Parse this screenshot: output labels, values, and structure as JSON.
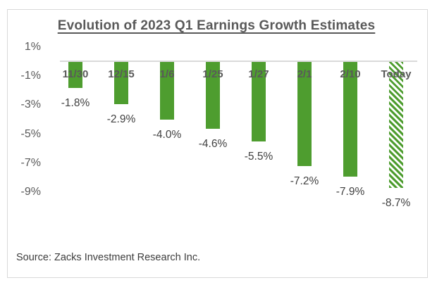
{
  "chart_data": {
    "type": "bar",
    "title": "Evolution of 2023 Q1 Earnings Growth Estimates",
    "categories": [
      "11/30",
      "12/15",
      "1/6",
      "1/25",
      "1/27",
      "2/1",
      "2/10",
      "Today"
    ],
    "values": [
      -1.8,
      -2.9,
      -4.0,
      -4.6,
      -5.5,
      -7.2,
      -7.9,
      -8.7
    ],
    "value_labels": [
      "-1.8%",
      "-2.9%",
      "-4.0%",
      "-4.6%",
      "-5.5%",
      "-7.2%",
      "-7.9%",
      "-8.7%"
    ],
    "yticks": {
      "labels": [
        "1%",
        "-1%",
        "-3%",
        "-5%",
        "-7%",
        "-9%"
      ],
      "values": [
        1,
        -1,
        -3,
        -5,
        -7,
        -9
      ]
    },
    "ylim": [
      -9.6,
      1.4
    ],
    "xlabel": "",
    "ylabel": "",
    "grid": false,
    "legend": "none",
    "bar_color": "#4e9d2f",
    "hatched_category": "Today",
    "axis_line_color": "#d9d9d9",
    "label_color": "#595959",
    "value_label_color": "#404040"
  },
  "source": {
    "text": "Source: Zacks Investment Research Inc."
  }
}
